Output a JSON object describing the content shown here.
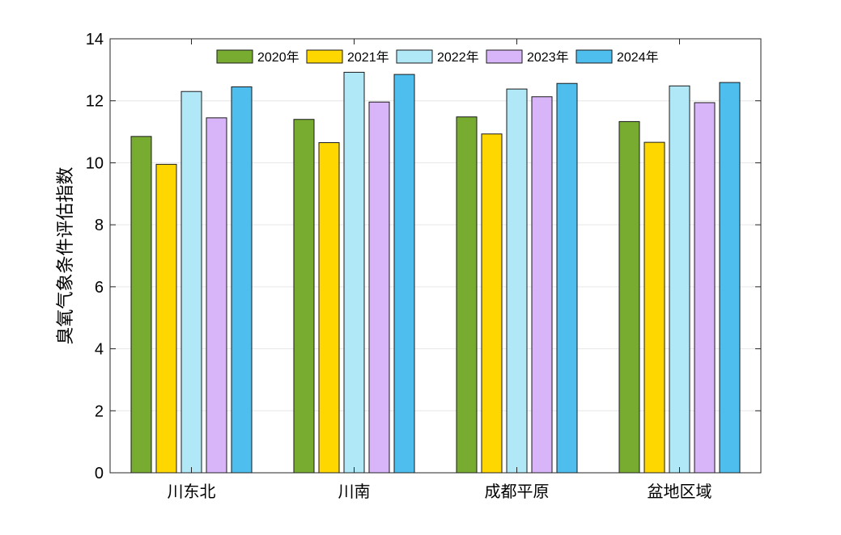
{
  "chart_data": {
    "type": "bar",
    "title": "",
    "xlabel": "",
    "ylabel": "臭氧气象条件评估指数",
    "ylim": [
      0,
      14
    ],
    "yticks": [
      0,
      2,
      4,
      6,
      8,
      10,
      12,
      14
    ],
    "grid": true,
    "legend_position": "top",
    "categories": [
      "川东北",
      "川南",
      "成都平原",
      "盆地区域"
    ],
    "series": [
      {
        "name": "2020年",
        "color": "#77AC30",
        "values": [
          10.85,
          11.4,
          11.48,
          11.33
        ]
      },
      {
        "name": "2021年",
        "color": "#FFD700",
        "values": [
          9.95,
          10.65,
          10.93,
          10.66
        ]
      },
      {
        "name": "2022年",
        "color": "#B0E8F8",
        "values": [
          12.3,
          12.92,
          12.38,
          12.48
        ]
      },
      {
        "name": "2023年",
        "color": "#D8B4F8",
        "values": [
          11.45,
          11.96,
          12.13,
          11.94
        ]
      },
      {
        "name": "2024年",
        "color": "#4DBEEE",
        "values": [
          12.45,
          12.85,
          12.56,
          12.59
        ]
      }
    ]
  }
}
